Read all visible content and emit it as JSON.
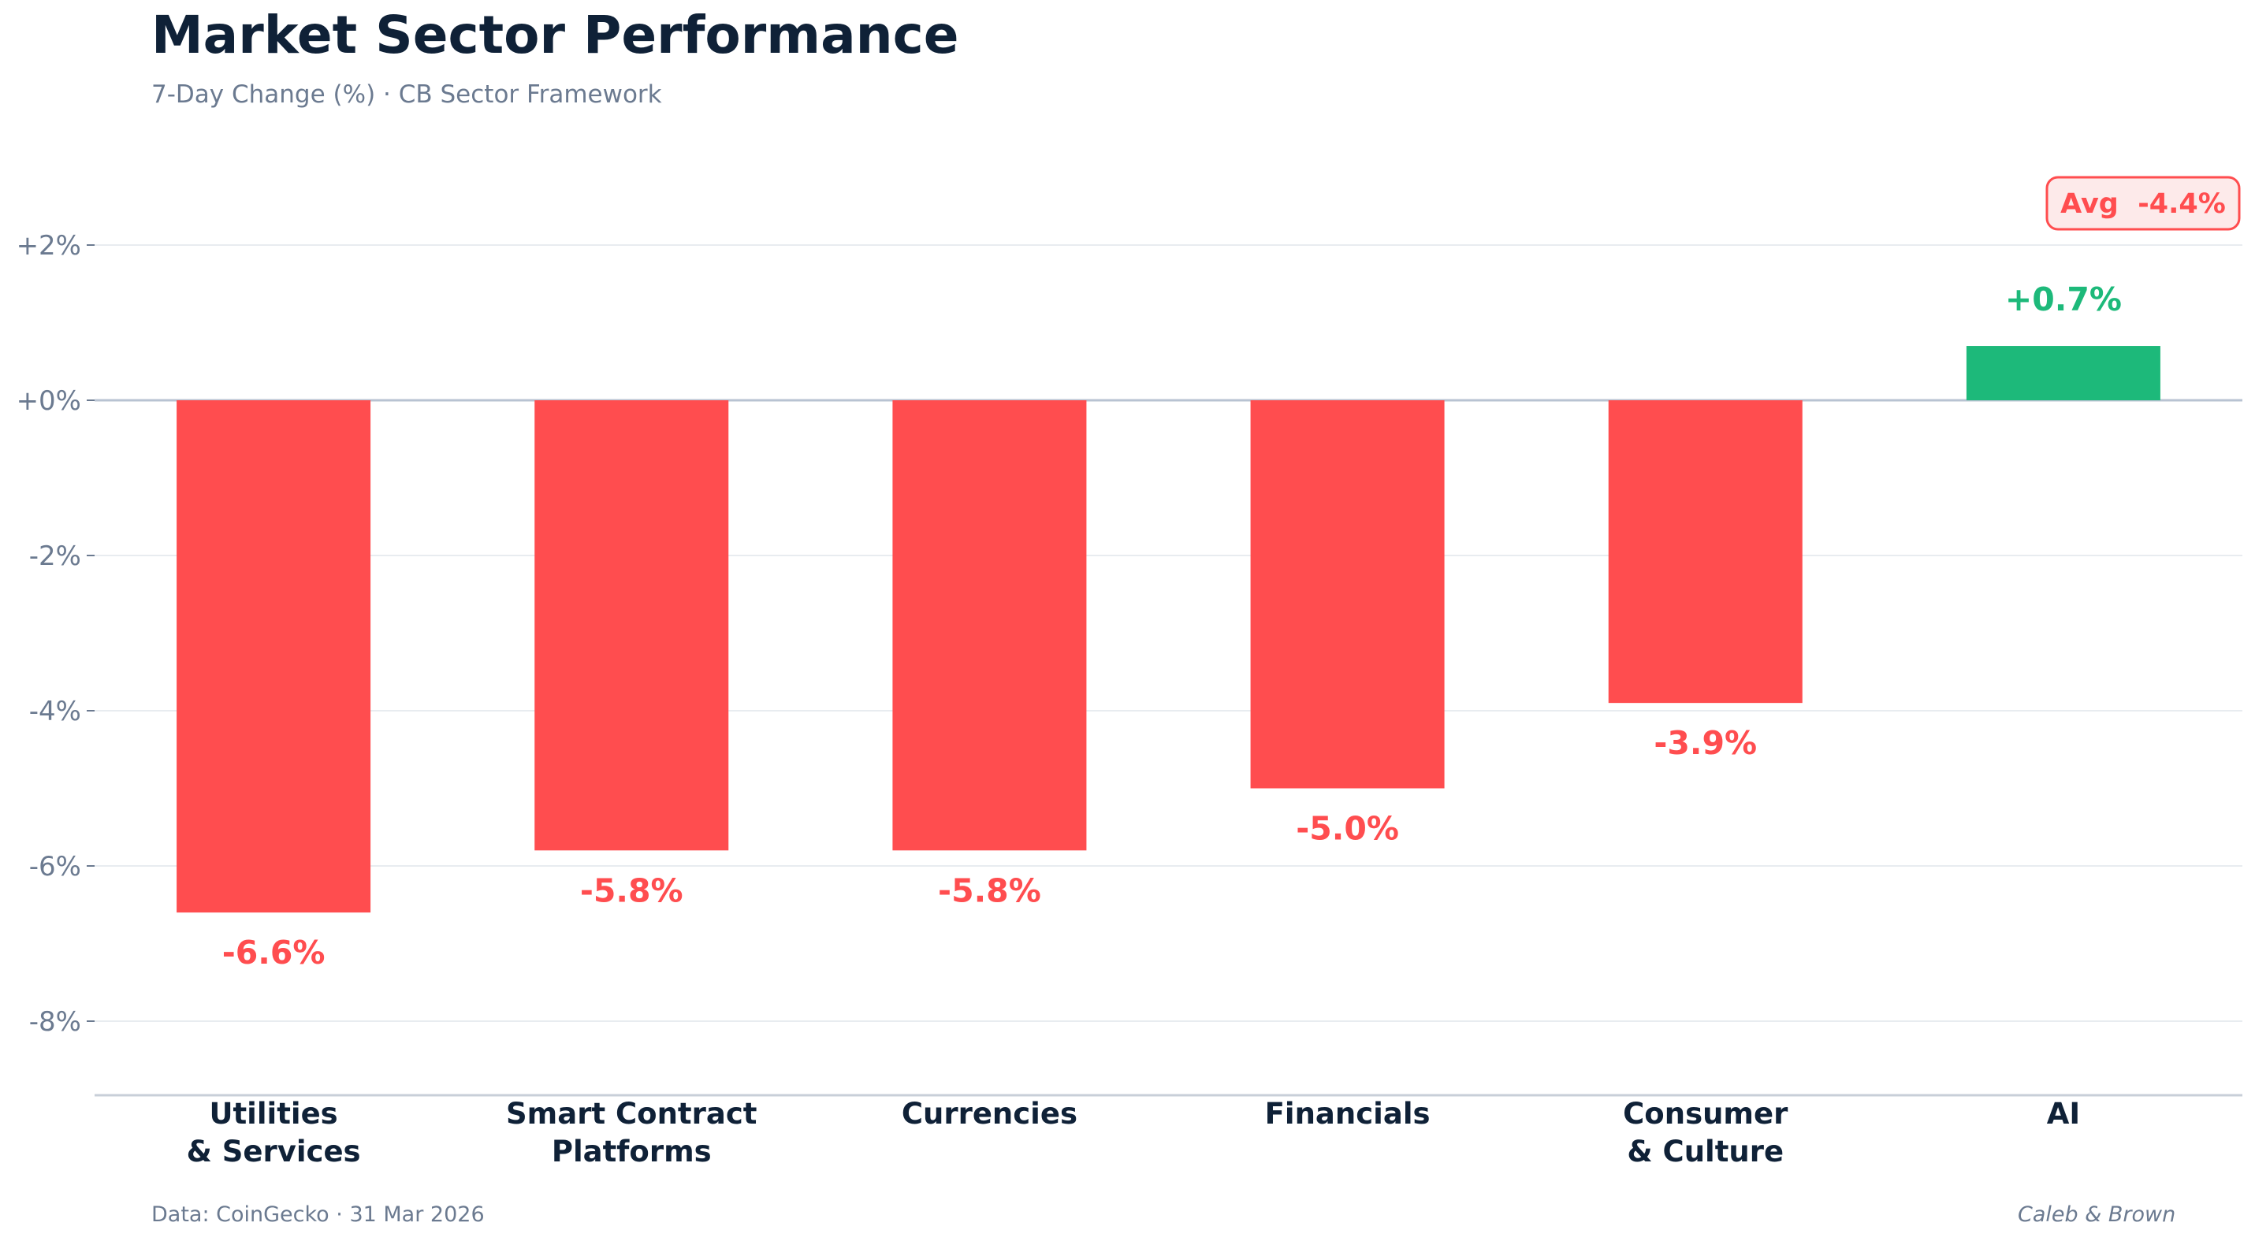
{
  "header": {
    "title": "Market Sector Performance",
    "subtitle": "7-Day Change (%)  ·  CB Sector Framework"
  },
  "footer": {
    "source": "Data: CoinGecko  ·  31 Mar 2026",
    "credit": "Caleb & Brown"
  },
  "chart_data": {
    "type": "bar",
    "title": "Market Sector Performance",
    "subtitle": "7-Day Change (%)  ·  CB Sector Framework",
    "categories": [
      [
        "Utilities",
        "& Services"
      ],
      [
        "Smart Contract",
        "Platforms"
      ],
      [
        "Currencies"
      ],
      [
        "Financials"
      ],
      [
        "Consumer",
        "& Culture"
      ],
      [
        "AI"
      ]
    ],
    "values": [
      -6.6,
      -5.8,
      -5.8,
      -5.0,
      -3.9,
      0.7
    ],
    "value_labels": [
      "-6.6%",
      "-5.8%",
      "-5.8%",
      "-5.0%",
      "-3.9%",
      "+0.7%"
    ],
    "ylim": [
      -9,
      3
    ],
    "yticks": [
      2,
      0,
      -2,
      -4,
      -6,
      -8
    ],
    "ytick_labels": [
      "+2%",
      "+0%",
      "-2%",
      "-4%",
      "-6%",
      "-8%"
    ],
    "average": {
      "label": "Avg  -4.4%",
      "value": -4.4
    },
    "grid": true,
    "colors": {
      "negative": "#ff4d4f",
      "positive": "#1db97a",
      "grid": "#e8ecf0",
      "zero_line": "#b8c3d2",
      "axis": "#c8cfd8",
      "avg_fill": "#fdeaea"
    }
  }
}
